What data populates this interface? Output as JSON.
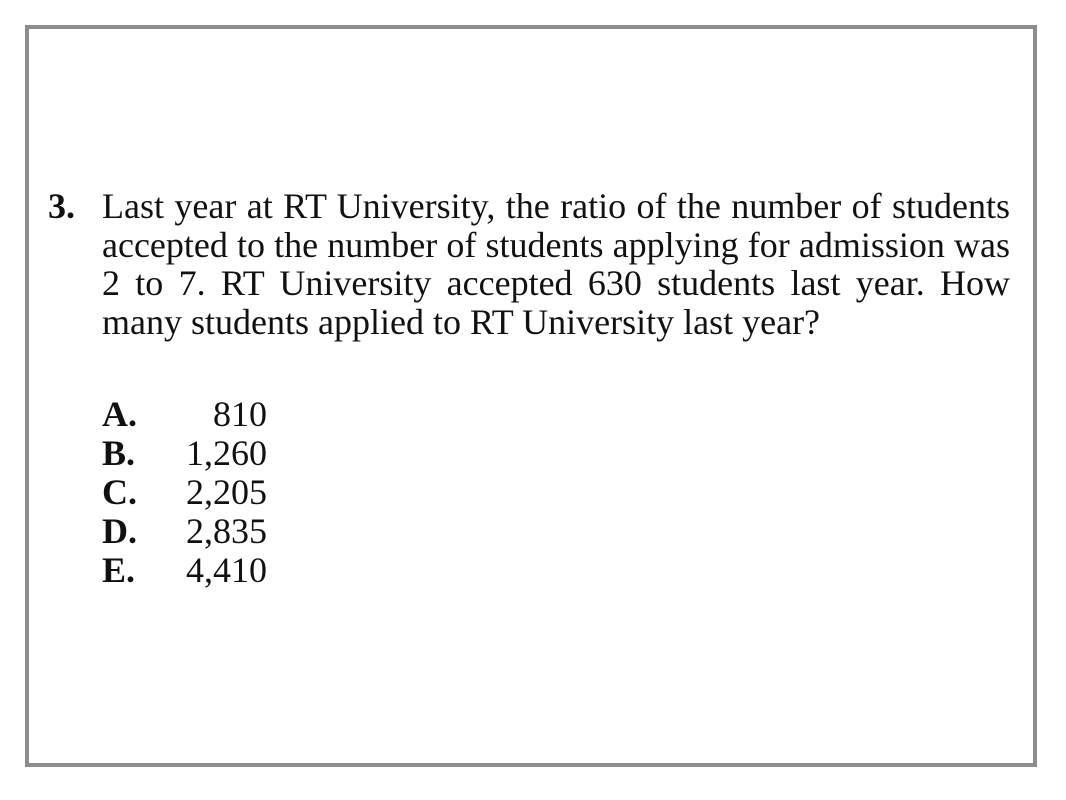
{
  "question": {
    "number": "3.",
    "text": "Last year at RT University, the ratio of the number of students accepted to the number of students applying for admission was 2 to 7. RT University accepted 630 students last year. How many students applied to RT University last year?"
  },
  "choices": [
    {
      "letter": "A.",
      "value": "810"
    },
    {
      "letter": "B.",
      "value": "1,260"
    },
    {
      "letter": "C.",
      "value": "2,205"
    },
    {
      "letter": "D.",
      "value": "2,835"
    },
    {
      "letter": "E.",
      "value": "4,410"
    }
  ]
}
